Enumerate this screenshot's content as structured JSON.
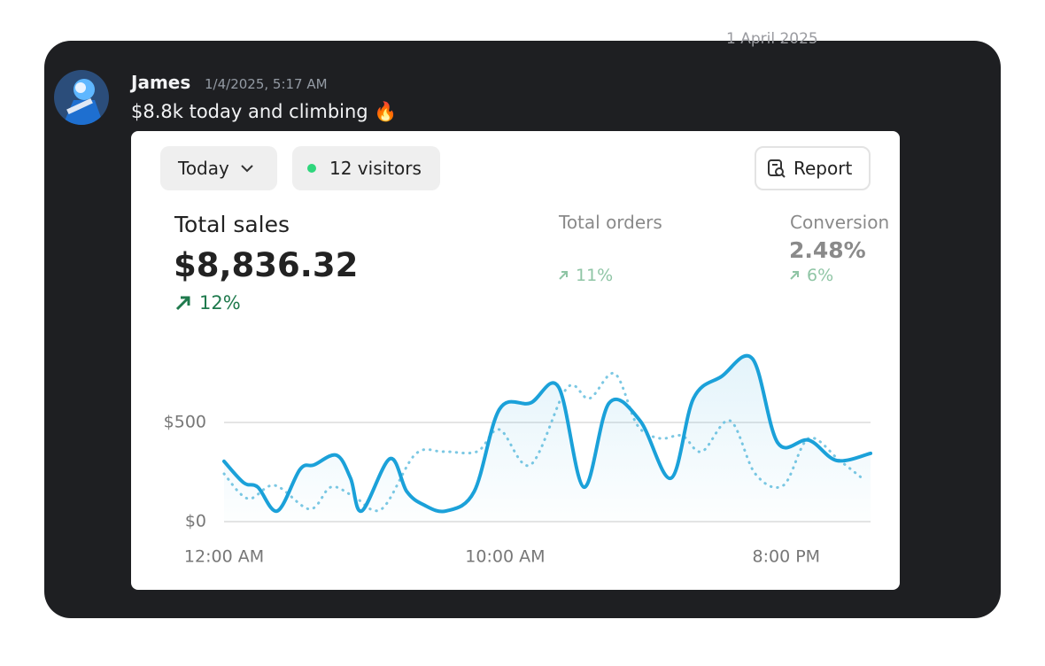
{
  "date_divider": "1 April 2025",
  "message": {
    "author": "James",
    "timestamp": "1/4/2025, 5:17 AM",
    "text": "$8.8k today and climbing",
    "emoji": "🔥"
  },
  "card": {
    "period_button": "Today",
    "visitors": "12 visitors",
    "report_button": "Report",
    "total_sales": {
      "label": "Total sales",
      "value": "$8,836.32",
      "change": "12%"
    },
    "total_orders": {
      "label": "Total orders",
      "change": "11%"
    },
    "conversion": {
      "label": "Conversion",
      "value": "2.48%",
      "change": "6%"
    }
  },
  "chart_data": {
    "type": "line",
    "xlim": [
      0,
      23
    ],
    "ylim": [
      0,
      850
    ],
    "xticks": [
      {
        "value": 0,
        "label": "12:00 AM"
      },
      {
        "value": 10,
        "label": "10:00 AM"
      },
      {
        "value": 20,
        "label": "8:00 PM"
      }
    ],
    "yticks": [
      {
        "value": 0,
        "label": "$0"
      },
      {
        "value": 500,
        "label": "$500"
      }
    ],
    "grid": true,
    "series": [
      {
        "color": "#1ba1d9",
        "style": "solid",
        "area": true,
        "x": [
          0,
          0.7,
          1.2,
          1.9,
          2.7,
          3.2,
          4.0,
          4.5,
          4.9,
          5.9,
          6.5,
          7.1,
          7.9,
          8.9,
          9.8,
          10.9,
          11.9,
          12.8,
          13.7,
          14.8,
          15.9,
          16.7,
          17.7,
          18.8,
          19.7,
          20.8,
          21.8,
          23.0
        ],
        "values": [
          304,
          196,
          174,
          54,
          263,
          286,
          335,
          219,
          54,
          317,
          152,
          85,
          54,
          152,
          567,
          598,
          679,
          174,
          598,
          509,
          219,
          621,
          732,
          821,
          397,
          411,
          308,
          344
        ]
      },
      {
        "color": "#7cc8e3",
        "style": "dotted",
        "area": false,
        "x": [
          0,
          0.85,
          1.8,
          3.05,
          3.8,
          4.6,
          5.6,
          6.8,
          7.8,
          9.0,
          9.8,
          10.9,
          12.2,
          13.0,
          13.9,
          14.7,
          15.5,
          16.3,
          17.0,
          18.0,
          18.9,
          19.9,
          20.8,
          21.9,
          22.7
        ],
        "values": [
          241,
          116,
          183,
          63,
          174,
          129,
          63,
          339,
          353,
          353,
          464,
          286,
          674,
          621,
          746,
          487,
          420,
          433,
          353,
          509,
          241,
          183,
          420,
          308,
          219
        ]
      }
    ]
  }
}
